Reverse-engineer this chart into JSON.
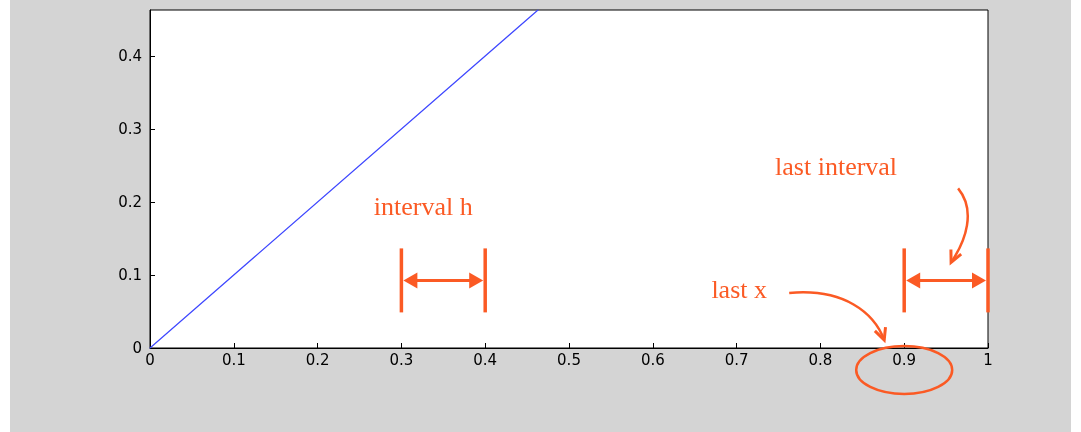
{
  "chart_data": {
    "type": "line",
    "x": [
      0,
      0.463
    ],
    "series": [
      {
        "color": "#3f48ff",
        "values": [
          0,
          0.463
        ]
      }
    ],
    "xlim": [
      0,
      1
    ],
    "ylim": [
      0,
      0.463
    ],
    "xticks": [
      0,
      0.1,
      0.2,
      0.3,
      0.4,
      0.5,
      0.6,
      0.7,
      0.8,
      0.9,
      1
    ],
    "yticks": [
      0,
      0.1,
      0.2,
      0.3,
      0.4
    ],
    "grid": false,
    "marker": "none",
    "line_style": "solid",
    "annotations": [
      "interval h",
      "last interval",
      "last x"
    ]
  }
}
